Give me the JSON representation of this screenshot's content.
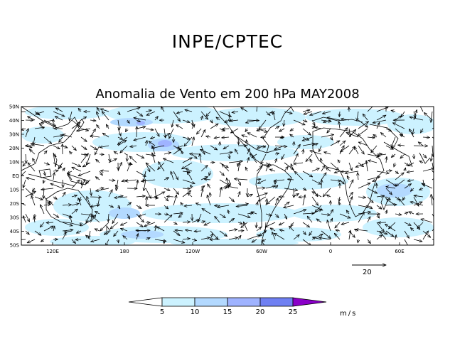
{
  "header": {
    "title": "INPE/CPTEC",
    "subtitle": "Anomalia de Vento em 200 hPa MAY2008"
  },
  "map": {
    "lat_ticks": [
      "50N",
      "40N",
      "30N",
      "20N",
      "10N",
      "EQ",
      "10S",
      "20S",
      "30S",
      "40S",
      "50S"
    ],
    "lon_ticks": [
      "120E",
      "180",
      "120W",
      "60W",
      "0",
      "60E"
    ],
    "reference_vector": {
      "label": "20",
      "magnitude": 20
    },
    "colors": {
      "land_outline": "#000000",
      "frame": "#000000"
    }
  },
  "colorbar": {
    "levels": [
      "5",
      "10",
      "15",
      "20",
      "25"
    ],
    "unit": "m/s",
    "colors": [
      "#ffffff",
      "#ccf2ff",
      "#b3d9ff",
      "#9fb3ff",
      "#6f80f2",
      "#8a00c8"
    ]
  }
}
